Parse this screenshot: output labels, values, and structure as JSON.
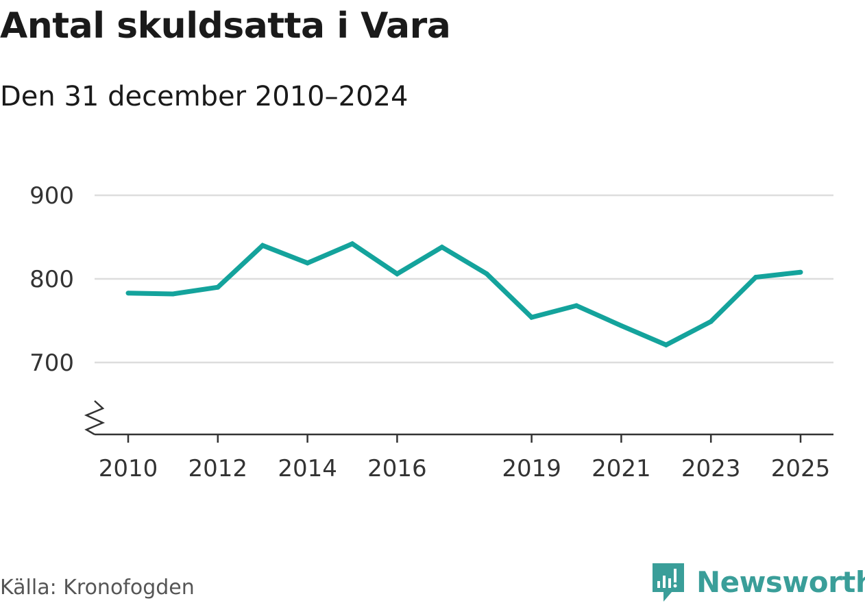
{
  "title": "Antal skuldsatta i Vara",
  "subtitle": "Den 31 december 2010–2024",
  "source": "Källa: Kronofogden",
  "brand": {
    "name": "Newsworthy",
    "icon": "newsworthy-logo-icon",
    "color": "#3a9e99"
  },
  "colors": {
    "line": "#14a39c",
    "grid": "#dddddd",
    "axis": "#333333",
    "text": "#1a1a1a",
    "tick_text": "#333333"
  },
  "chart_data": {
    "type": "line",
    "title": "Antal skuldsatta i Vara",
    "subtitle": "Den 31 december 2010–2024",
    "xlabel": "",
    "ylabel": "",
    "x": [
      2010,
      2011,
      2012,
      2013,
      2014,
      2015,
      2016,
      2017,
      2018,
      2019,
      2020,
      2021,
      2022,
      2023,
      2024,
      2025
    ],
    "series": [
      {
        "values": [
          783,
          782,
          790,
          840,
          819,
          842,
          806,
          838,
          806,
          754,
          768,
          744,
          721,
          749,
          802,
          808
        ]
      }
    ],
    "x_ticks": [
      "2010",
      "2012",
      "2014",
      "2016",
      "2019",
      "2021",
      "2023",
      "2025"
    ],
    "y_ticks": [
      "700",
      "800",
      "900"
    ],
    "xlim": [
      2010,
      2025
    ],
    "ylim": [
      700,
      900
    ],
    "y_axis_break": true,
    "grid": "horizontal",
    "legend": "none"
  }
}
